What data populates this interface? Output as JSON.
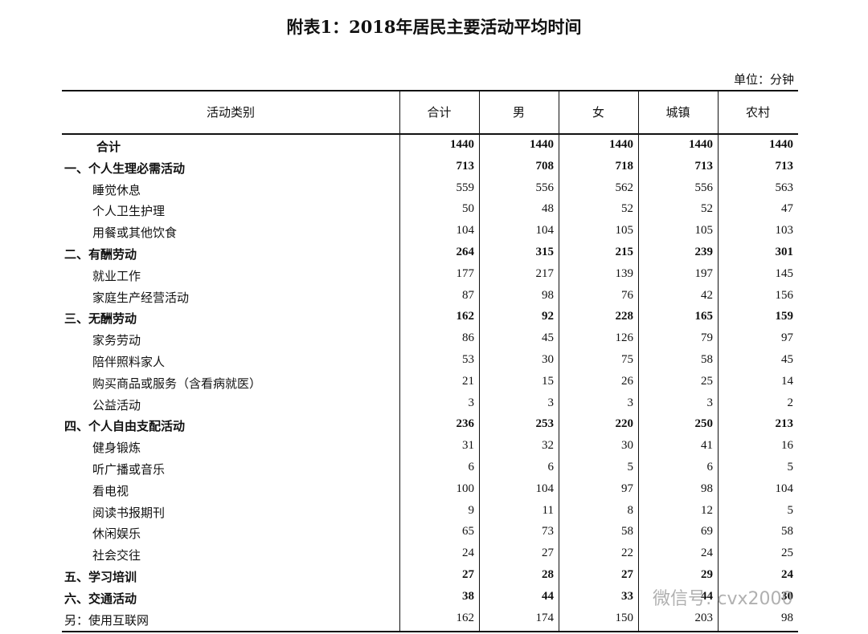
{
  "header": {
    "title": "附表1：2018年居民主要活动平均时间",
    "unit": "单位：分钟"
  },
  "table": {
    "columns": [
      "活动类别",
      "合计",
      "男",
      "女",
      "城镇",
      "农村"
    ],
    "rows": [
      {
        "label": "合计",
        "values": [
          1440,
          1440,
          1440,
          1440,
          1440
        ],
        "bold": true,
        "indent": true
      },
      {
        "label": "一、个人生理必需活动",
        "values": [
          713,
          708,
          718,
          713,
          713
        ],
        "bold": true
      },
      {
        "label": "睡觉休息",
        "values": [
          559,
          556,
          562,
          556,
          563
        ],
        "indent": true
      },
      {
        "label": "个人卫生护理",
        "values": [
          50,
          48,
          52,
          52,
          47
        ],
        "indent": true
      },
      {
        "label": "用餐或其他饮食",
        "values": [
          104,
          104,
          105,
          105,
          103
        ],
        "indent": true
      },
      {
        "label": "二、有酬劳动",
        "values": [
          264,
          315,
          215,
          239,
          301
        ],
        "bold": true
      },
      {
        "label": "就业工作",
        "values": [
          177,
          217,
          139,
          197,
          145
        ],
        "indent": true
      },
      {
        "label": "家庭生产经营活动",
        "values": [
          87,
          98,
          76,
          42,
          156
        ],
        "indent": true
      },
      {
        "label": "三、无酬劳动",
        "values": [
          162,
          92,
          228,
          165,
          159
        ],
        "bold": true
      },
      {
        "label": "家务劳动",
        "values": [
          86,
          45,
          126,
          79,
          97
        ],
        "indent": true
      },
      {
        "label": "陪伴照料家人",
        "values": [
          53,
          30,
          75,
          58,
          45
        ],
        "indent": true
      },
      {
        "label": "购买商品或服务（含看病就医）",
        "values": [
          21,
          15,
          26,
          25,
          14
        ],
        "indent": true
      },
      {
        "label": "公益活动",
        "values": [
          3,
          3,
          3,
          3,
          2
        ],
        "indent": true
      },
      {
        "label": "四、个人自由支配活动",
        "values": [
          236,
          253,
          220,
          250,
          213
        ],
        "bold": true
      },
      {
        "label": "健身锻炼",
        "values": [
          31,
          32,
          30,
          41,
          16
        ],
        "indent": true
      },
      {
        "label": "听广播或音乐",
        "values": [
          6,
          6,
          5,
          6,
          5
        ],
        "indent": true
      },
      {
        "label": "看电视",
        "values": [
          100,
          104,
          97,
          98,
          104
        ],
        "indent": true
      },
      {
        "label": "阅读书报期刊",
        "values": [
          9,
          11,
          8,
          12,
          5
        ],
        "indent": true
      },
      {
        "label": "休闲娱乐",
        "values": [
          65,
          73,
          58,
          69,
          58
        ],
        "indent": true
      },
      {
        "label": "社会交往",
        "values": [
          24,
          27,
          22,
          24,
          25
        ],
        "indent": true
      },
      {
        "label": "五、学习培训",
        "values": [
          27,
          28,
          27,
          29,
          24
        ],
        "bold": true
      },
      {
        "label": "六、交通活动",
        "values": [
          38,
          44,
          33,
          44,
          30
        ],
        "bold": true
      },
      {
        "label": "另：使用互联网",
        "values": [
          162,
          174,
          150,
          203,
          98
        ]
      }
    ]
  },
  "watermark": "微信号: cvx2000"
}
